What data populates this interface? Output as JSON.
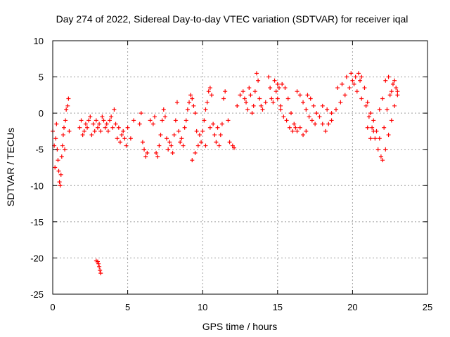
{
  "chart_data": {
    "type": "scatter",
    "title": "Day 274 of 2022, Sidereal Day-to-day VTEC variation (SDTVAR) for receiver iqal",
    "xlabel": "GPS time / hours",
    "ylabel": "SDTVAR / TECUs",
    "xlim": [
      0,
      25
    ],
    "ylim": [
      -25,
      10
    ],
    "xticks": [
      "0",
      "5",
      "10",
      "15",
      "20",
      "25"
    ],
    "yticks": [
      "10",
      "5",
      "0",
      "-5",
      "-10",
      "-15",
      "-20",
      "-25"
    ],
    "grid": true,
    "marker": "+",
    "color": "#ff0000",
    "series": [
      {
        "name": "SDTVAR",
        "points": [
          [
            0.0,
            -2.5
          ],
          [
            0.1,
            -4.5
          ],
          [
            0.15,
            -7.5
          ],
          [
            0.2,
            -3.5
          ],
          [
            0.25,
            -1.5
          ],
          [
            0.3,
            -5.0
          ],
          [
            0.35,
            -6.5
          ],
          [
            0.4,
            -8.0
          ],
          [
            0.45,
            -9.5
          ],
          [
            0.5,
            -10.0
          ],
          [
            0.55,
            -8.5
          ],
          [
            0.6,
            -6.0
          ],
          [
            0.65,
            -4.5
          ],
          [
            0.7,
            -3.0
          ],
          [
            0.75,
            -2.0
          ],
          [
            0.8,
            -5.0
          ],
          [
            0.85,
            -1.0
          ],
          [
            0.9,
            0.5
          ],
          [
            1.0,
            1.0
          ],
          [
            1.05,
            2.0
          ],
          [
            1.1,
            -2.5
          ],
          [
            1.8,
            -2.0
          ],
          [
            1.9,
            -1.0
          ],
          [
            2.0,
            -3.0
          ],
          [
            2.1,
            -2.5
          ],
          [
            2.2,
            -1.5
          ],
          [
            2.3,
            -2.0
          ],
          [
            2.4,
            -1.0
          ],
          [
            2.5,
            -0.5
          ],
          [
            2.6,
            -3.0
          ],
          [
            2.7,
            -1.5
          ],
          [
            2.8,
            -2.5
          ],
          [
            2.9,
            -1.0
          ],
          [
            3.0,
            -2.0
          ],
          [
            3.1,
            -1.5
          ],
          [
            3.2,
            -2.5
          ],
          [
            3.3,
            -0.5
          ],
          [
            3.4,
            -1.0
          ],
          [
            3.5,
            -2.0
          ],
          [
            3.6,
            -1.5
          ],
          [
            3.7,
            -2.5
          ],
          [
            3.8,
            -1.0
          ],
          [
            3.9,
            -0.5
          ],
          [
            4.0,
            -2.0
          ],
          [
            4.1,
            0.5
          ],
          [
            4.2,
            -1.5
          ],
          [
            4.3,
            -3.5
          ],
          [
            4.4,
            -2.0
          ],
          [
            4.5,
            -4.0
          ],
          [
            4.6,
            -3.0
          ],
          [
            4.7,
            -2.5
          ],
          [
            4.8,
            -3.5
          ],
          [
            4.9,
            -4.5
          ],
          [
            5.0,
            -2.0
          ],
          [
            5.2,
            -3.5
          ],
          [
            5.4,
            -1.0
          ],
          [
            2.9,
            -20.4
          ],
          [
            3.0,
            -20.5
          ],
          [
            3.05,
            -20.8
          ],
          [
            3.1,
            -21.2
          ],
          [
            3.15,
            -21.7
          ],
          [
            3.2,
            -22.1
          ],
          [
            5.8,
            -1.5
          ],
          [
            5.9,
            0.0
          ],
          [
            6.0,
            -4.0
          ],
          [
            6.1,
            -5.0
          ],
          [
            6.2,
            -6.0
          ],
          [
            6.3,
            -5.5
          ],
          [
            6.5,
            -1.0
          ],
          [
            6.7,
            -1.5
          ],
          [
            6.8,
            -0.5
          ],
          [
            6.9,
            -5.5
          ],
          [
            7.0,
            -6.0
          ],
          [
            7.1,
            -4.5
          ],
          [
            7.2,
            -3.0
          ],
          [
            7.3,
            -1.0
          ],
          [
            7.4,
            0.5
          ],
          [
            7.5,
            -0.5
          ],
          [
            7.6,
            -3.5
          ],
          [
            7.7,
            -5.0
          ],
          [
            7.8,
            -4.0
          ],
          [
            7.9,
            -4.5
          ],
          [
            8.0,
            -5.5
          ],
          [
            8.1,
            -3.0
          ],
          [
            8.2,
            -1.0
          ],
          [
            8.3,
            1.5
          ],
          [
            8.4,
            -2.5
          ],
          [
            8.5,
            -4.0
          ],
          [
            8.6,
            -3.5
          ],
          [
            8.7,
            -4.5
          ],
          [
            8.8,
            -2.0
          ],
          [
            8.9,
            -1.0
          ],
          [
            9.0,
            0.5
          ],
          [
            9.1,
            1.5
          ],
          [
            9.2,
            2.5
          ],
          [
            9.3,
            2.0
          ],
          [
            9.4,
            1.0
          ],
          [
            9.5,
            0.0
          ],
          [
            9.6,
            -2.5
          ],
          [
            9.7,
            -4.5
          ],
          [
            9.8,
            -3.0
          ],
          [
            9.9,
            -4.0
          ],
          [
            10.0,
            -2.5
          ],
          [
            10.1,
            -1.0
          ],
          [
            10.2,
            0.5
          ],
          [
            10.3,
            1.5
          ],
          [
            10.4,
            3.0
          ],
          [
            10.5,
            3.5
          ],
          [
            10.6,
            2.5
          ],
          [
            10.7,
            -1.5
          ],
          [
            10.8,
            -3.0
          ],
          [
            10.9,
            -4.0
          ],
          [
            11.0,
            -2.0
          ],
          [
            11.1,
            -4.5
          ],
          [
            11.2,
            -3.0
          ],
          [
            11.3,
            -1.5
          ],
          [
            11.4,
            2.0
          ],
          [
            11.5,
            3.0
          ],
          [
            11.7,
            -1.0
          ],
          [
            9.3,
            -6.5
          ],
          [
            9.5,
            -5.5
          ],
          [
            10.2,
            -4.5
          ],
          [
            10.5,
            -2.0
          ],
          [
            11.8,
            -4.0
          ],
          [
            12.0,
            -4.5
          ],
          [
            12.1,
            -4.8
          ],
          [
            12.3,
            1.0
          ],
          [
            12.5,
            2.5
          ],
          [
            12.7,
            3.0
          ],
          [
            12.8,
            2.0
          ],
          [
            12.9,
            1.5
          ],
          [
            13.0,
            0.5
          ],
          [
            13.1,
            3.5
          ],
          [
            13.2,
            2.5
          ],
          [
            13.3,
            0.0
          ],
          [
            13.4,
            1.0
          ],
          [
            13.5,
            3.0
          ],
          [
            13.6,
            5.5
          ],
          [
            13.7,
            4.5
          ],
          [
            13.8,
            2.0
          ],
          [
            13.9,
            1.0
          ],
          [
            14.0,
            0.5
          ],
          [
            14.2,
            1.5
          ],
          [
            14.4,
            5.0
          ],
          [
            14.5,
            3.5
          ],
          [
            14.6,
            2.0
          ],
          [
            14.7,
            1.5
          ],
          [
            14.8,
            4.5
          ],
          [
            14.9,
            3.0
          ],
          [
            15.0,
            4.0
          ],
          [
            15.1,
            3.5
          ],
          [
            15.2,
            1.0
          ],
          [
            15.3,
            4.0
          ],
          [
            15.5,
            3.5
          ],
          [
            15.7,
            2.0
          ],
          [
            15.9,
            0.0
          ],
          [
            16.1,
            -1.5
          ],
          [
            16.3,
            -2.5
          ],
          [
            16.5,
            -2.0
          ],
          [
            16.7,
            -3.0
          ],
          [
            16.9,
            -2.5
          ],
          [
            15.0,
            2.0
          ],
          [
            15.2,
            0.5
          ],
          [
            15.4,
            -0.5
          ],
          [
            15.6,
            -1.0
          ],
          [
            15.8,
            -2.0
          ],
          [
            16.0,
            -2.5
          ],
          [
            16.2,
            -2.0
          ],
          [
            16.3,
            3.0
          ],
          [
            16.5,
            2.5
          ],
          [
            16.7,
            1.5
          ],
          [
            16.9,
            0.5
          ],
          [
            17.1,
            -0.5
          ],
          [
            17.3,
            -1.0
          ],
          [
            17.5,
            -1.5
          ],
          [
            17.0,
            2.5
          ],
          [
            17.2,
            2.0
          ],
          [
            17.4,
            1.0
          ],
          [
            17.6,
            0.0
          ],
          [
            17.8,
            -0.5
          ],
          [
            18.0,
            -1.5
          ],
          [
            18.2,
            -2.5
          ],
          [
            18.4,
            -1.5
          ],
          [
            18.6,
            -1.0
          ],
          [
            18.0,
            1.0
          ],
          [
            18.3,
            0.5
          ],
          [
            18.6,
            0.0
          ],
          [
            18.9,
            0.5
          ],
          [
            19.2,
            1.5
          ],
          [
            19.5,
            2.5
          ],
          [
            19.8,
            3.5
          ],
          [
            20.0,
            4.5
          ],
          [
            20.2,
            5.0
          ],
          [
            20.4,
            5.5
          ],
          [
            20.6,
            5.0
          ],
          [
            19.0,
            3.5
          ],
          [
            19.3,
            4.0
          ],
          [
            19.6,
            5.0
          ],
          [
            19.9,
            5.5
          ],
          [
            20.1,
            4.0
          ],
          [
            20.3,
            3.0
          ],
          [
            20.6,
            2.0
          ],
          [
            20.9,
            1.0
          ],
          [
            21.1,
            -0.5
          ],
          [
            21.3,
            -2.0
          ],
          [
            21.5,
            -3.5
          ],
          [
            21.7,
            -5.0
          ],
          [
            21.9,
            -6.0
          ],
          [
            22.0,
            -6.5
          ],
          [
            22.2,
            -5.0
          ],
          [
            22.4,
            -3.0
          ],
          [
            22.6,
            -1.0
          ],
          [
            22.8,
            1.0
          ],
          [
            23.0,
            2.5
          ],
          [
            20.5,
            4.5
          ],
          [
            20.8,
            3.5
          ],
          [
            21.0,
            1.5
          ],
          [
            21.2,
            0.0
          ],
          [
            21.4,
            -1.0
          ],
          [
            21.6,
            -2.5
          ],
          [
            21.8,
            -3.5
          ],
          [
            22.1,
            -2.0
          ],
          [
            22.3,
            0.5
          ],
          [
            22.5,
            2.5
          ],
          [
            22.7,
            4.0
          ],
          [
            22.9,
            3.5
          ],
          [
            21.0,
            -2.0
          ],
          [
            21.2,
            -3.5
          ],
          [
            21.4,
            -2.5
          ],
          [
            21.8,
            0.5
          ],
          [
            22.0,
            2.0
          ],
          [
            22.2,
            4.5
          ],
          [
            22.4,
            5.0
          ],
          [
            22.6,
            3.0
          ],
          [
            22.8,
            4.5
          ],
          [
            23.0,
            3.0
          ]
        ]
      }
    ]
  }
}
